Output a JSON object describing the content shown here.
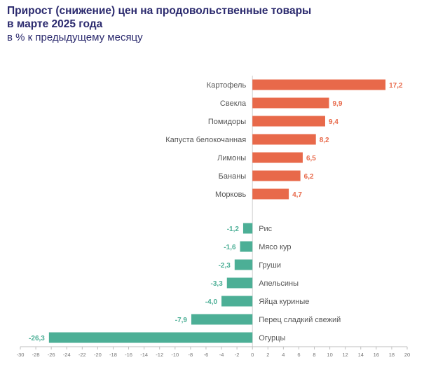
{
  "chart_data": {
    "type": "bar",
    "orientation": "horizontal",
    "title": "Прирост (снижение) цен на продовольственные товары",
    "title_line2": "в марте 2025 года",
    "subtitle": "в % к предыдущему месяцу",
    "categories": [
      "Картофель",
      "Свекла",
      "Помидоры",
      "Капуста белокочанная",
      "Лимоны",
      "Бананы",
      "Морковь",
      "Рис",
      "Мясо кур",
      "Груши",
      "Апельсины",
      "Яйца куриные",
      "Перец сладкий свежий",
      "Огурцы"
    ],
    "values": [
      17.2,
      9.9,
      9.4,
      8.2,
      6.5,
      6.2,
      4.7,
      -1.2,
      -1.6,
      -2.3,
      -3.3,
      -4.0,
      -7.9,
      -26.3
    ],
    "value_labels": [
      "17,2",
      "9,9",
      "9,4",
      "8,2",
      "6,5",
      "6,2",
      "4,7",
      "-1,2",
      "-1,6",
      "-2,3",
      "-3,3",
      "-4,0",
      "-7,9",
      "-26,3"
    ],
    "xlim": [
      -30,
      20
    ],
    "xticks": [
      -30,
      -28,
      -26,
      -24,
      -22,
      -20,
      -18,
      -16,
      -14,
      -12,
      -10,
      -8,
      -6,
      -4,
      -2,
      0,
      2,
      4,
      6,
      8,
      10,
      12,
      14,
      16,
      18,
      20
    ],
    "colors": {
      "positive": "#e8694a",
      "negative": "#4caf96"
    },
    "grid": false,
    "legend": "none"
  }
}
